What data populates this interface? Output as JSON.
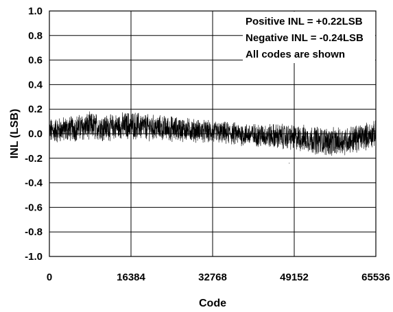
{
  "chart_data": {
    "type": "line",
    "xlabel": "Code",
    "ylabel": "INL (LSB)",
    "xlim": [
      0,
      65536
    ],
    "ylim": [
      -1.0,
      1.0
    ],
    "x_ticks": [
      0,
      16384,
      32768,
      49152,
      65536
    ],
    "x_tick_labels": [
      "0",
      "16384",
      "32768",
      "49152",
      "65536"
    ],
    "y_ticks": [
      1.0,
      0.8,
      0.6,
      0.4,
      0.2,
      0.0,
      -0.2,
      -0.4,
      -0.6,
      -0.8,
      -1.0
    ],
    "y_tick_labels": [
      "1.0",
      "0.8",
      "0.6",
      "0.4",
      "0.2",
      "0.0",
      "-0.2",
      "-0.4",
      "-0.6",
      "-0.8",
      "-1.0"
    ],
    "grid": true,
    "annotations": [
      "Positive INL = +0.22LSB",
      "Negative INL = -0.24LSB",
      "All codes are shown"
    ],
    "series": [
      {
        "color": "#000000",
        "positive_peak": 0.22,
        "negative_peak": -0.24,
        "envelope": {
          "x": [
            0,
            4096,
            8192,
            12288,
            16384,
            20480,
            24576,
            28672,
            32768,
            36864,
            40960,
            45056,
            49152,
            53248,
            57344,
            61440,
            65536
          ],
          "mean": [
            0.02,
            0.04,
            0.06,
            0.05,
            0.07,
            0.05,
            0.04,
            0.03,
            0.01,
            0.0,
            -0.01,
            -0.02,
            -0.03,
            -0.05,
            -0.07,
            -0.04,
            0.0
          ],
          "amplitude": [
            0.1,
            0.1,
            0.11,
            0.1,
            0.11,
            0.1,
            0.1,
            0.09,
            0.09,
            0.09,
            0.09,
            0.1,
            0.1,
            0.11,
            0.11,
            0.11,
            0.1
          ]
        }
      }
    ]
  }
}
